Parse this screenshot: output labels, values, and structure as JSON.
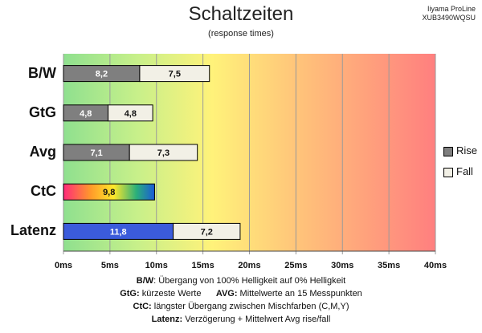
{
  "header": {
    "title": "Schaltzeiten",
    "subtitle": "(response times)",
    "brand_line1": "Iiyama ProLine",
    "brand_line2": "XUB3490WQSU"
  },
  "footnotes": [
    {
      "key": "B/W",
      "text": ":  Übergang von 100% Helligkeit auf 0% Helligkeit"
    },
    {
      "key": "GtG:",
      "text": " kürzeste  Werte",
      "key2": "AVG:",
      "text2": " Mittelwerte  an 15 Messpunkten"
    },
    {
      "key": "CtC:",
      "text": " längster Übergang  zwischen Mischfarben (C,M,Y)"
    },
    {
      "key": "Latenz:",
      "text": " Verzögerung  + Mittelwert  Avg rise/fall"
    }
  ],
  "chart_data": {
    "type": "bar",
    "orientation": "horizontal",
    "stacked": true,
    "categories": [
      "B/W",
      "GtG",
      "Avg",
      "CtC",
      "Latenz"
    ],
    "series": [
      {
        "name": "Rise",
        "values": [
          8.2,
          4.8,
          7.1,
          9.8,
          11.8
        ],
        "labels": [
          "8,2",
          "4,8",
          "7,1",
          "9,8",
          "11,8"
        ]
      },
      {
        "name": "Fall",
        "values": [
          7.5,
          4.8,
          7.3,
          null,
          7.2
        ],
        "labels": [
          "7,5",
          "4,8",
          "7,3",
          "",
          "7,2"
        ]
      }
    ],
    "xlim": [
      0,
      40
    ],
    "x_ticks": [
      0,
      5,
      10,
      15,
      20,
      25,
      30,
      35,
      40
    ],
    "x_tick_labels": [
      "0ms",
      "5ms",
      "10ms",
      "15ms",
      "20ms",
      "25ms",
      "30ms",
      "35ms",
      "40ms"
    ],
    "legend": {
      "position": "right",
      "entries": [
        "Rise",
        "Fall"
      ]
    },
    "grid": true,
    "colors": {
      "rise": "#7f7f7f",
      "fall": "#f2f0e6",
      "latenz_rise": "#3b5bdb",
      "background_gradient": [
        "#8fe08f",
        "#fff27a",
        "#ff7f7f"
      ]
    }
  }
}
